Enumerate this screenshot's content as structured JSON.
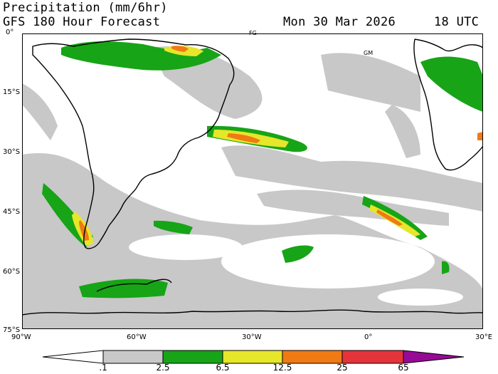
{
  "header": {
    "title": "Precipitation (mm/6hr)",
    "subtitle": "GFS 180 Hour Forecast",
    "valid_date": "Mon 30 Mar 2026",
    "valid_time": "18 UTC"
  },
  "map": {
    "projection": "lat-lon",
    "lon_range": [
      -90,
      30
    ],
    "lat_range": [
      -75,
      0
    ],
    "lat_labels": [
      "0°",
      "15°S",
      "30°S",
      "45°S",
      "60°S",
      "75°S"
    ],
    "lon_labels": [
      "90°W",
      "60°W",
      "30°W",
      "0°",
      "30°E"
    ],
    "place_labels": [
      "FG",
      "GM"
    ],
    "background": "#ffffff",
    "coastline_color": "#000000"
  },
  "legend": {
    "tick_labels": [
      ".1",
      "2.5",
      "6.5",
      "12.5",
      "25",
      "65"
    ],
    "colors": [
      "#ffffff",
      "#c8c8c8",
      "#17a417",
      "#e6e62a",
      "#f07a14",
      "#e4343a",
      "#960a96"
    ]
  }
}
